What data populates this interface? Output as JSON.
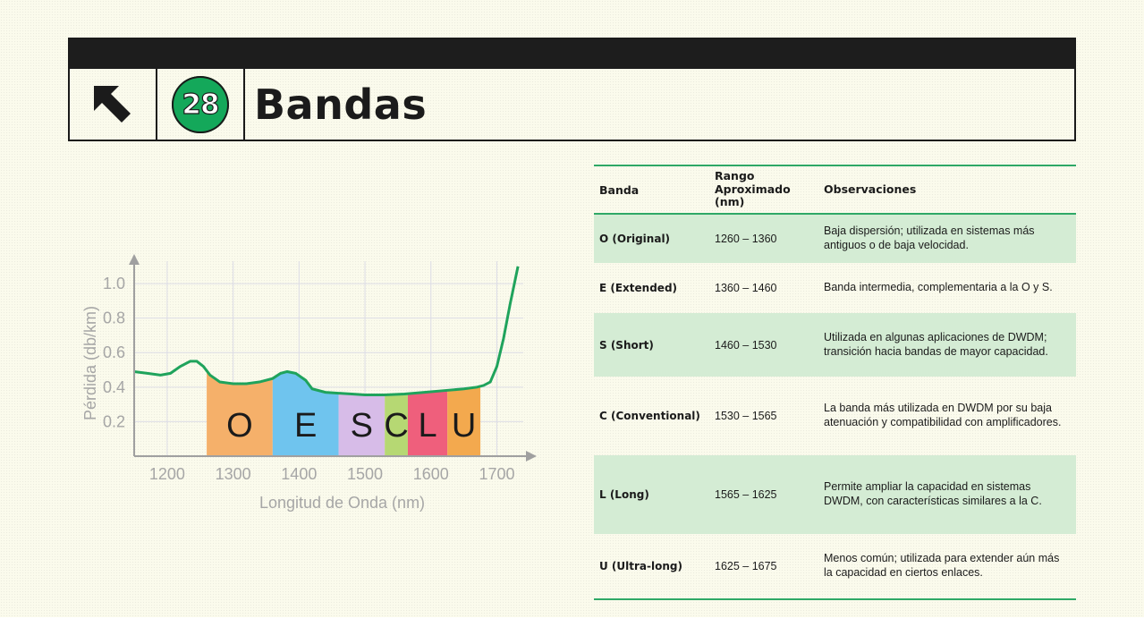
{
  "header": {
    "number": "28",
    "title": "Bandas",
    "arrow_icon": "arrow-up-left-icon",
    "badge_color": "#14a85a"
  },
  "chart_data": {
    "type": "area",
    "xlabel": "Longitud de Onda (nm)",
    "ylabel": "Pérdida (db/km)",
    "x_ticks": [
      "1200",
      "1300",
      "1400",
      "1500",
      "1600",
      "1700"
    ],
    "y_ticks": [
      "0.2",
      "0.4",
      "0.6",
      "0.8",
      "1.0"
    ],
    "xlim": [
      1150,
      1740
    ],
    "ylim": [
      0,
      1.13
    ],
    "grid": true,
    "curve_color": "#1fa35c",
    "curve": {
      "x": [
        1150,
        1170,
        1190,
        1205,
        1220,
        1235,
        1245,
        1255,
        1265,
        1280,
        1300,
        1320,
        1340,
        1360,
        1372,
        1382,
        1395,
        1410,
        1420,
        1440,
        1460,
        1480,
        1500,
        1530,
        1560,
        1590,
        1620,
        1650,
        1670,
        1680,
        1690,
        1700,
        1710,
        1720,
        1732
      ],
      "y": [
        0.49,
        0.48,
        0.47,
        0.48,
        0.52,
        0.55,
        0.55,
        0.52,
        0.47,
        0.43,
        0.42,
        0.42,
        0.43,
        0.45,
        0.48,
        0.49,
        0.48,
        0.44,
        0.39,
        0.37,
        0.365,
        0.36,
        0.355,
        0.355,
        0.36,
        0.37,
        0.38,
        0.39,
        0.4,
        0.41,
        0.43,
        0.52,
        0.68,
        0.88,
        1.1
      ]
    },
    "bands": [
      {
        "label": "O",
        "start": 1260,
        "end": 1360,
        "color": "#f5b06a"
      },
      {
        "label": "E",
        "start": 1360,
        "end": 1460,
        "color": "#6fc4ee"
      },
      {
        "label": "S",
        "start": 1460,
        "end": 1530,
        "color": "#d7bce8"
      },
      {
        "label": "C",
        "start": 1530,
        "end": 1565,
        "color": "#b6d873"
      },
      {
        "label": "L",
        "start": 1565,
        "end": 1625,
        "color": "#ef5f7c"
      },
      {
        "label": "U",
        "start": 1625,
        "end": 1675,
        "color": "#f3a94e"
      }
    ]
  },
  "table": {
    "headers": [
      "Banda",
      "Rango Aproximado (nm)",
      "Observaciones"
    ],
    "rows": [
      {
        "banda": "O (Original)",
        "rango": "1260 – 1360",
        "obs": "Baja dispersión; utilizada en sistemas más antiguos o de baja velocidad."
      },
      {
        "banda": "E (Extended)",
        "rango": "1360 – 1460",
        "obs": "Banda intermedia, complementaria a la O y S."
      },
      {
        "banda": "S (Short)",
        "rango": "1460 – 1530",
        "obs": "Utilizada en algunas aplicaciones de DWDM; transición hacia bandas de mayor capacidad."
      },
      {
        "banda": "C (Conventional)",
        "rango": "1530 – 1565",
        "obs": "La banda más utilizada en DWDM por su baja atenuación y compatibilidad con amplificadores."
      },
      {
        "banda": "L (Long)",
        "rango": "1565 – 1625",
        "obs": "Permite ampliar la capacidad en sistemas DWDM, con características similares a la C."
      },
      {
        "banda": "U (Ultra-long)",
        "rango": "1625 – 1675",
        "obs": "Menos común; utilizada para extender aún más la capacidad en ciertos enlaces."
      }
    ],
    "row_accent": "#d4ecd4",
    "rule_color": "#2ea866"
  }
}
